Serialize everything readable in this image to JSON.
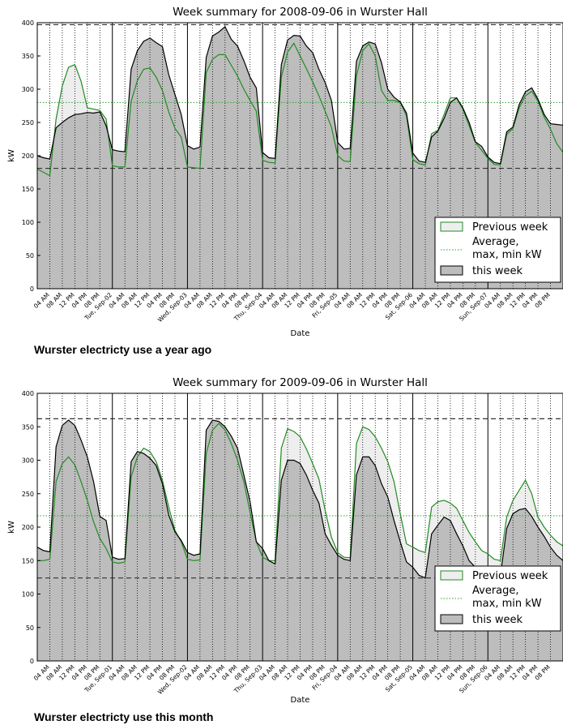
{
  "chart_data": [
    {
      "type": "area",
      "title": "Week summary for 2008-09-06 in Wurster Hall",
      "caption": "Wurster electricty use a year ago",
      "xlabel": "Date",
      "ylabel": "kW",
      "ylim": [
        0,
        400
      ],
      "yticks": [
        "0",
        "50",
        "100",
        "150",
        "200",
        "250",
        "300",
        "350",
        "400"
      ],
      "day_labels": [
        "Tue, Sep-02",
        "Wed, Sep-03",
        "Thu, Sep-04",
        "Fri, Sep-05",
        "Sat, Sep-06",
        "Sun, Sep-07"
      ],
      "hour_labels": [
        "04 AM",
        "08 AM",
        "12 PM",
        "04 PM",
        "08 PM"
      ],
      "legend": {
        "placement": "lower-right",
        "previous": "Previous week",
        "average": "Average,\nmax, min kW",
        "this": "this week"
      },
      "reference_lines": {
        "average": 280,
        "max": 397,
        "min": 181
      },
      "x_hours": [
        0,
        2,
        4,
        6,
        8,
        10,
        12,
        14,
        16,
        18,
        20,
        22,
        24,
        26,
        28,
        30,
        32,
        34,
        36,
        38,
        40,
        42,
        44,
        46,
        48,
        50,
        52,
        54,
        56,
        58,
        60,
        62,
        64,
        66,
        68,
        70,
        72,
        74,
        76,
        78,
        80,
        82,
        84,
        86,
        88,
        90,
        92,
        94,
        96,
        98,
        100,
        102,
        104,
        106,
        108,
        110,
        112,
        114,
        116,
        118,
        120,
        122,
        124,
        126,
        128,
        130,
        132,
        134,
        136,
        138,
        140,
        142,
        144,
        146,
        148,
        150,
        152,
        154,
        156,
        158,
        160,
        162,
        164,
        166,
        168
      ],
      "series": [
        {
          "name": "this week",
          "values": [
            200,
            197,
            195,
            242,
            250,
            257,
            262,
            263,
            265,
            264,
            266,
            245,
            209,
            207,
            206,
            330,
            358,
            372,
            377,
            370,
            364,
            322,
            292,
            262,
            215,
            210,
            213,
            348,
            380,
            386,
            394,
            375,
            365,
            343,
            318,
            302,
            205,
            197,
            196,
            337,
            374,
            381,
            380,
            365,
            355,
            330,
            310,
            283,
            220,
            210,
            211,
            342,
            365,
            371,
            368,
            340,
            300,
            288,
            281,
            264,
            204,
            192,
            190,
            228,
            237,
            256,
            280,
            287,
            272,
            250,
            221,
            214,
            198,
            190,
            188,
            236,
            243,
            277,
            296,
            302,
            285,
            262,
            248,
            247,
            246
          ]
        },
        {
          "name": "Previous week",
          "values": [
            180,
            175,
            170,
            255,
            305,
            333,
            337,
            312,
            272,
            270,
            268,
            255,
            185,
            183,
            183,
            282,
            313,
            330,
            332,
            318,
            298,
            266,
            241,
            228,
            183,
            182,
            181,
            325,
            345,
            352,
            352,
            336,
            320,
            300,
            283,
            267,
            193,
            190,
            189,
            318,
            356,
            369,
            350,
            331,
            311,
            290,
            267,
            243,
            200,
            192,
            191,
            320,
            358,
            368,
            350,
            298,
            283,
            283,
            280,
            260,
            194,
            188,
            186,
            233,
            238,
            262,
            287,
            287,
            270,
            245,
            220,
            208,
            196,
            187,
            186,
            232,
            241,
            272,
            290,
            297,
            282,
            258,
            240,
            218,
            205
          ]
        }
      ]
    },
    {
      "type": "area",
      "title": "Week summary for 2009-09-06 in Wurster Hall",
      "caption": "Wurster electricty use this month",
      "xlabel": "Date",
      "ylabel": "kW",
      "ylim": [
        0,
        400
      ],
      "yticks": [
        "0",
        "50",
        "100",
        "150",
        "200",
        "250",
        "300",
        "350",
        "400"
      ],
      "day_labels": [
        "Tue, Sep-01",
        "Wed, Sep-02",
        "Thu, Sep-03",
        "Fri, Sep-04",
        "Sat, Sep-05",
        "Sun, Sep-06"
      ],
      "hour_labels": [
        "04 AM",
        "08 AM",
        "12 PM",
        "04 PM",
        "08 PM"
      ],
      "legend": {
        "placement": "lower-right",
        "previous": "Previous week",
        "average": "Average,\nmax, min kW",
        "this": "this week"
      },
      "reference_lines": {
        "average": 217,
        "max": 362,
        "min": 124
      },
      "x_hours": [
        0,
        2,
        4,
        6,
        8,
        10,
        12,
        14,
        16,
        18,
        20,
        22,
        24,
        26,
        28,
        30,
        32,
        34,
        36,
        38,
        40,
        42,
        44,
        46,
        48,
        50,
        52,
        54,
        56,
        58,
        60,
        62,
        64,
        66,
        68,
        70,
        72,
        74,
        76,
        78,
        80,
        82,
        84,
        86,
        88,
        90,
        92,
        94,
        96,
        98,
        100,
        102,
        104,
        106,
        108,
        110,
        112,
        114,
        116,
        118,
        120,
        122,
        124,
        126,
        128,
        130,
        132,
        134,
        136,
        138,
        140,
        142,
        144,
        146,
        148,
        150,
        152,
        154,
        156,
        158,
        160,
        162,
        164,
        166,
        168
      ],
      "series": [
        {
          "name": "this week",
          "values": [
            170,
            165,
            163,
            320,
            352,
            360,
            352,
            330,
            305,
            268,
            216,
            210,
            155,
            152,
            153,
            298,
            313,
            310,
            303,
            292,
            265,
            218,
            193,
            180,
            162,
            158,
            160,
            345,
            360,
            358,
            350,
            336,
            318,
            278,
            238,
            178,
            168,
            150,
            145,
            270,
            300,
            300,
            295,
            278,
            255,
            236,
            190,
            173,
            158,
            152,
            150,
            278,
            305,
            305,
            292,
            265,
            245,
            210,
            178,
            148,
            140,
            128,
            124,
            190,
            203,
            215,
            210,
            190,
            172,
            150,
            140,
            135,
            131,
            126,
            127,
            198,
            220,
            226,
            228,
            216,
            200,
            186,
            170,
            158,
            150
          ]
        },
        {
          "name": "Previous week",
          "values": [
            150,
            150,
            152,
            268,
            295,
            305,
            293,
            268,
            240,
            208,
            183,
            168,
            148,
            146,
            148,
            275,
            305,
            318,
            313,
            298,
            270,
            230,
            195,
            178,
            152,
            150,
            151,
            310,
            345,
            355,
            345,
            325,
            300,
            268,
            222,
            178,
            155,
            150,
            150,
            318,
            347,
            343,
            335,
            317,
            295,
            272,
            225,
            185,
            162,
            155,
            154,
            325,
            350,
            346,
            335,
            318,
            298,
            268,
            220,
            175,
            170,
            165,
            162,
            230,
            238,
            240,
            236,
            228,
            210,
            192,
            178,
            165,
            160,
            152,
            150,
            215,
            240,
            255,
            270,
            250,
            215,
            200,
            188,
            178,
            172
          ]
        }
      ]
    }
  ]
}
